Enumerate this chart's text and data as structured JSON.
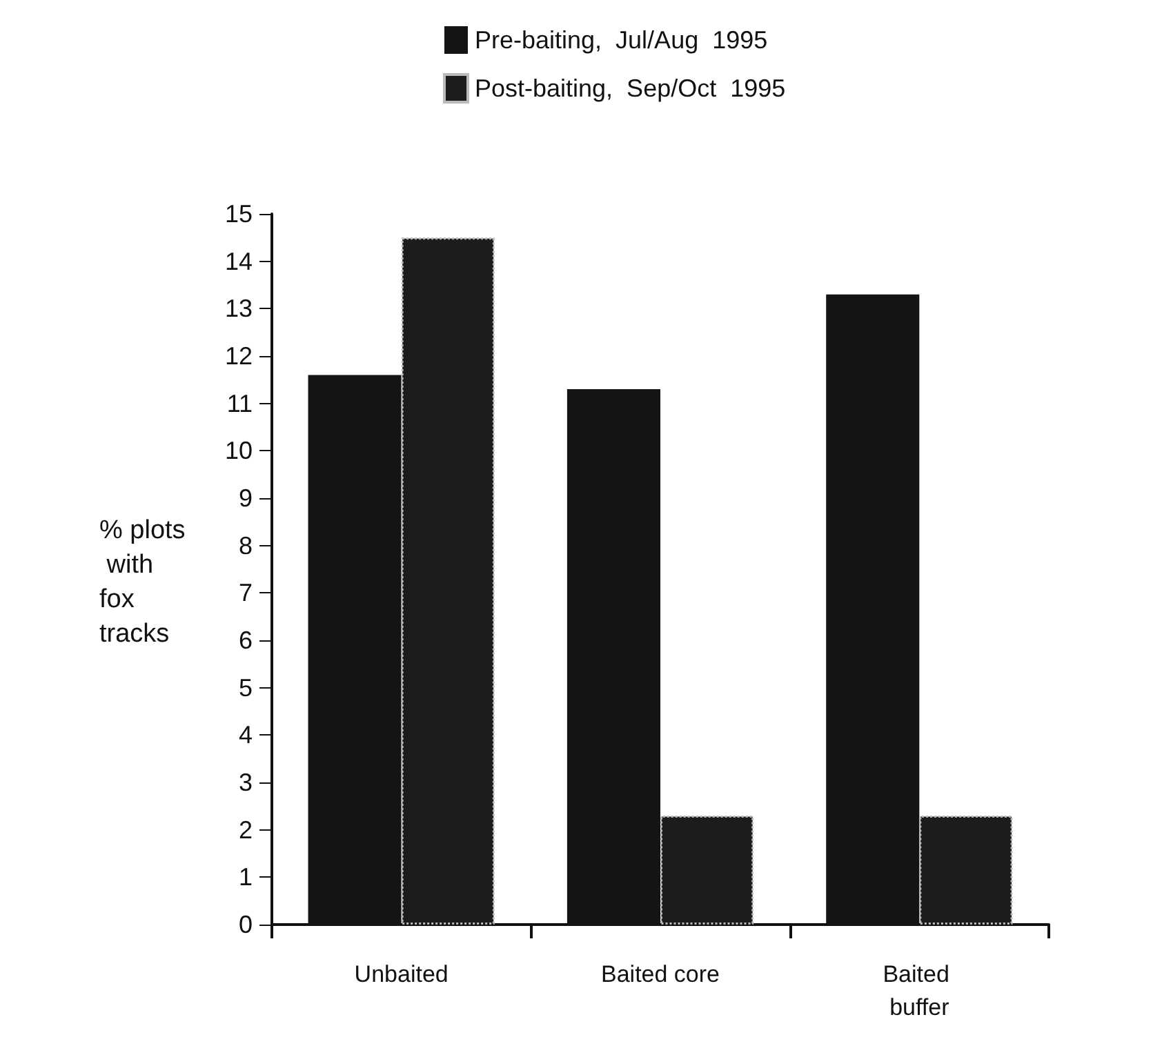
{
  "chart_data": {
    "type": "bar",
    "ylabel": "% plots with fox tracks",
    "categories": [
      "Unbaited",
      "Baited core",
      "Baited buffer"
    ],
    "series": [
      {
        "name": "Pre-baiting,  Jul/Aug  1995",
        "color": "#141414",
        "values": [
          11.6,
          11.3,
          13.3
        ]
      },
      {
        "name": "Post-baiting,  Sep/Oct  1995",
        "color": "#1c1c1c",
        "values": [
          14.5,
          2.3,
          2.3
        ]
      }
    ],
    "ylim": [
      0,
      15
    ],
    "yticks": [
      0,
      1,
      2,
      3,
      4,
      5,
      6,
      7,
      8,
      9,
      10,
      11,
      12,
      13,
      14,
      15
    ],
    "grid": false,
    "legend": "top"
  }
}
